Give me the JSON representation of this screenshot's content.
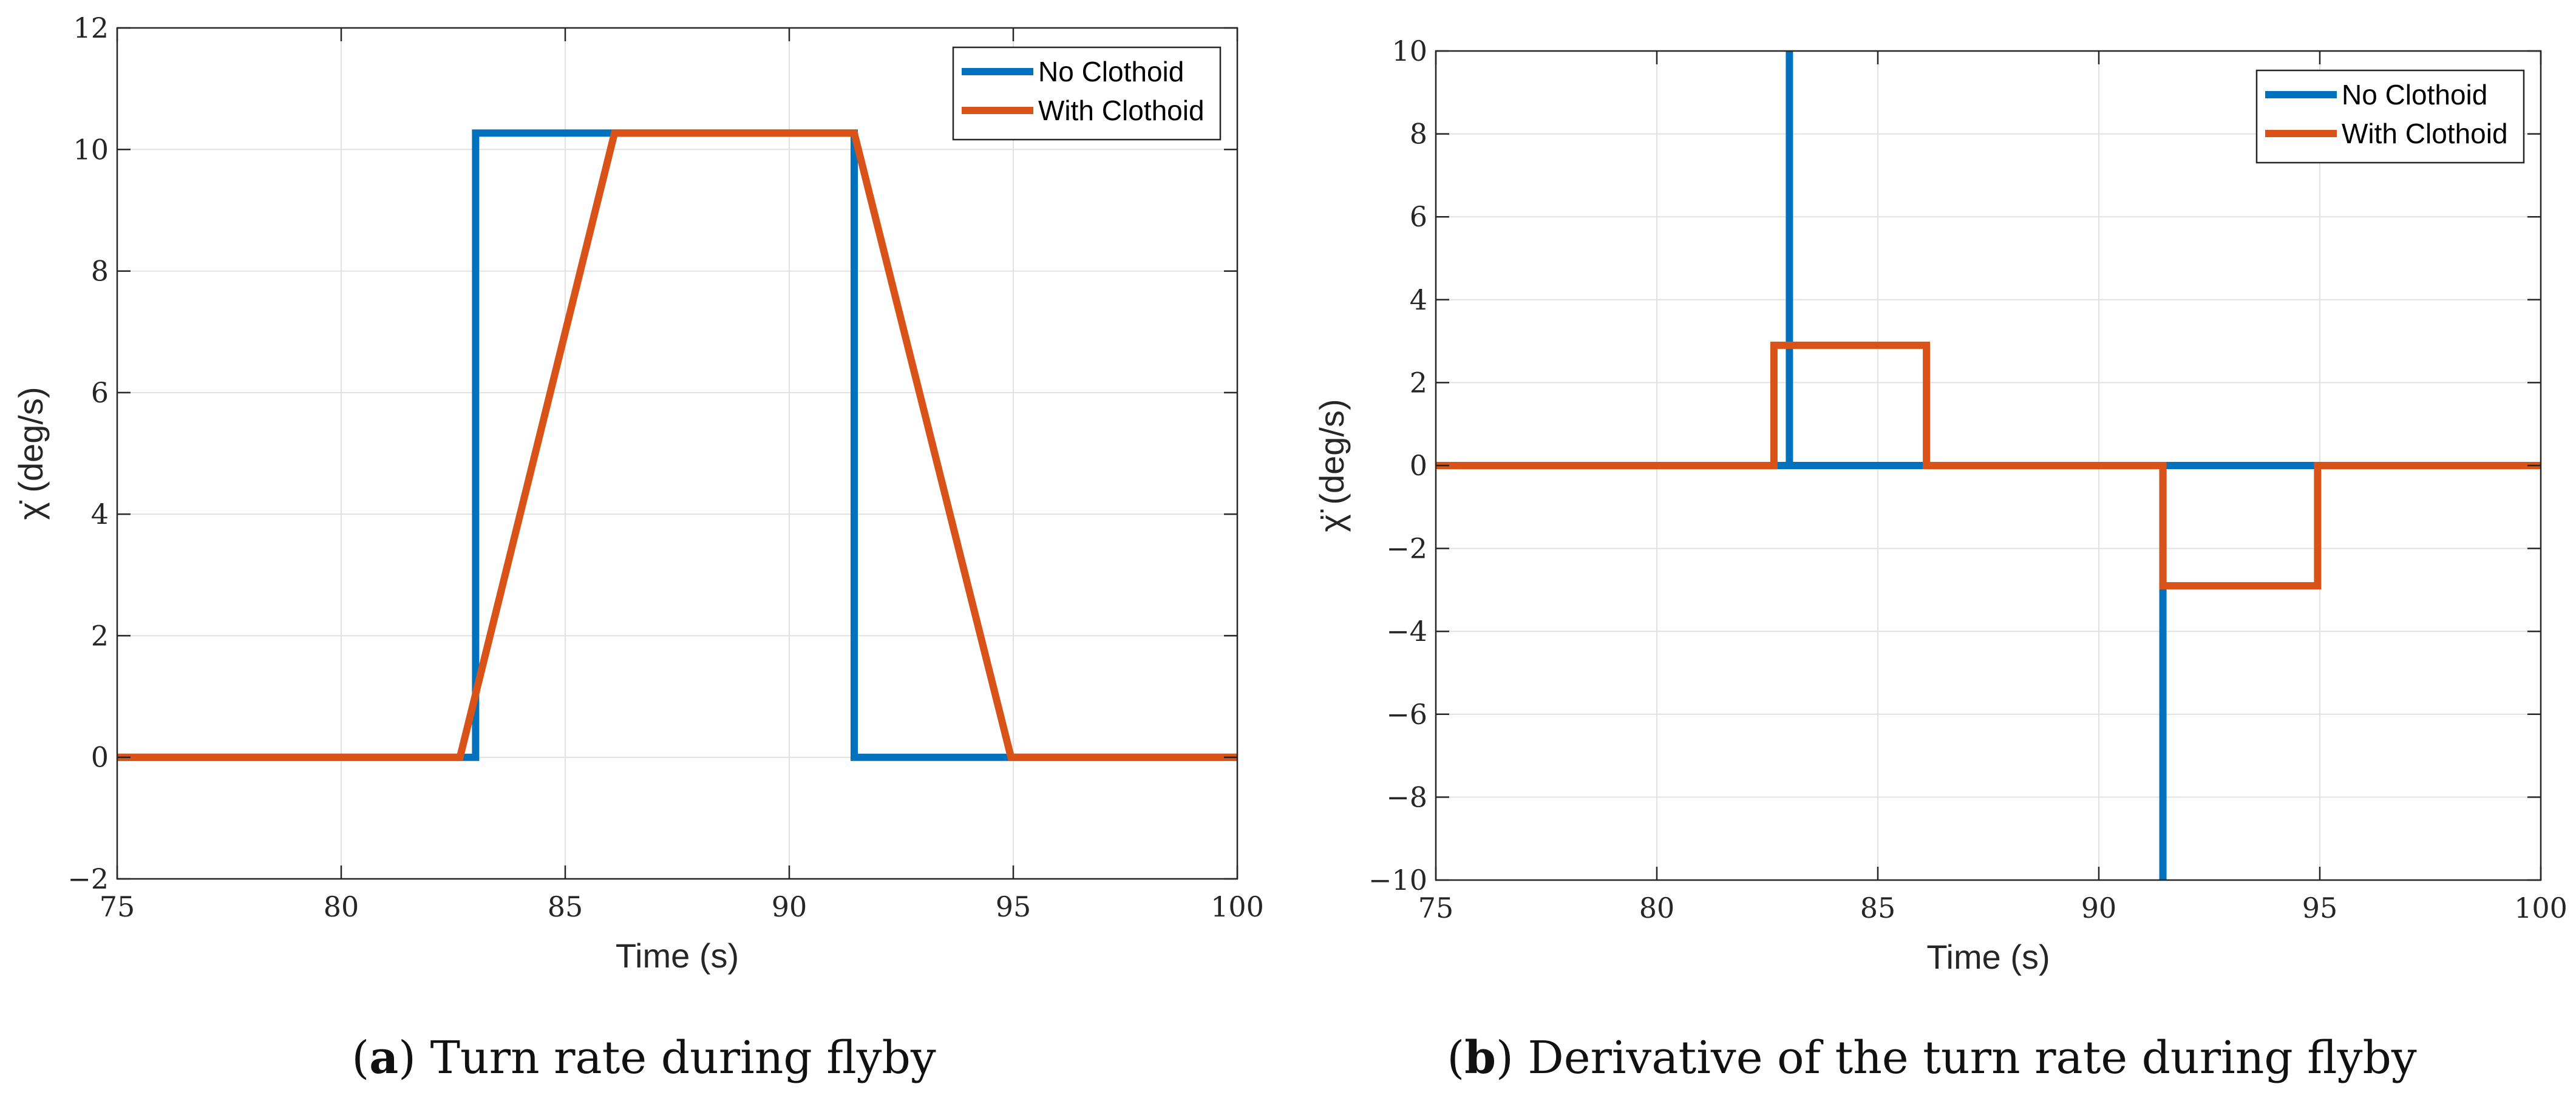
{
  "chart_data": [
    {
      "type": "line",
      "id": "a",
      "xlabel": "Time (s)",
      "ylabel": "χ̇ (deg/s)",
      "xlim": [
        75,
        100
      ],
      "ylim": [
        -2,
        12
      ],
      "xticks": [
        75,
        80,
        85,
        90,
        95,
        100
      ],
      "yticks": [
        -2,
        0,
        2,
        4,
        6,
        8,
        10,
        12
      ],
      "ytick_labels": [
        "−2",
        "0",
        "2",
        "4",
        "6",
        "8",
        "10",
        "12"
      ],
      "grid": true,
      "legend_position": "top-right",
      "series": [
        {
          "name": "No Clothoid",
          "color": "#0072BD",
          "x": [
            75,
            83.0,
            83.0,
            91.45,
            91.45,
            100
          ],
          "y": [
            0,
            0,
            10.27,
            10.27,
            0,
            0
          ]
        },
        {
          "name": "With Clothoid",
          "color": "#D95319",
          "x": [
            75,
            82.65,
            86.1,
            91.45,
            94.95,
            100
          ],
          "y": [
            0,
            0,
            10.27,
            10.27,
            0,
            0
          ]
        }
      ],
      "caption_label": "a",
      "caption_text": "Turn rate during flyby"
    },
    {
      "type": "line",
      "id": "b",
      "xlabel": "Time (s)",
      "ylabel": "χ̈ (deg/s)",
      "xlim": [
        75,
        100
      ],
      "ylim": [
        -10,
        10
      ],
      "xticks": [
        75,
        80,
        85,
        90,
        95,
        100
      ],
      "yticks": [
        -10,
        -8,
        -6,
        -4,
        -2,
        0,
        2,
        4,
        6,
        8,
        10
      ],
      "ytick_labels": [
        "−10",
        "−8",
        "−6",
        "−4",
        "−2",
        "0",
        "2",
        "4",
        "6",
        "8",
        "10"
      ],
      "grid": true,
      "legend_position": "top-right",
      "series": [
        {
          "name": "No Clothoid",
          "color": "#0072BD",
          "x": [
            75,
            83.0,
            83.0,
            83.0,
            91.45,
            91.45,
            91.45,
            100
          ],
          "y": [
            0,
            0,
            10,
            0,
            0,
            -10,
            0,
            0
          ]
        },
        {
          "name": "With Clothoid",
          "color": "#D95319",
          "x": [
            75,
            82.65,
            82.65,
            86.1,
            86.1,
            91.45,
            91.45,
            94.95,
            94.95,
            100
          ],
          "y": [
            0,
            0,
            2.9,
            2.9,
            0,
            0,
            -2.9,
            -2.9,
            0,
            0
          ]
        }
      ],
      "caption_label": "b",
      "caption_text": "Derivative of the turn rate during flyby"
    }
  ]
}
